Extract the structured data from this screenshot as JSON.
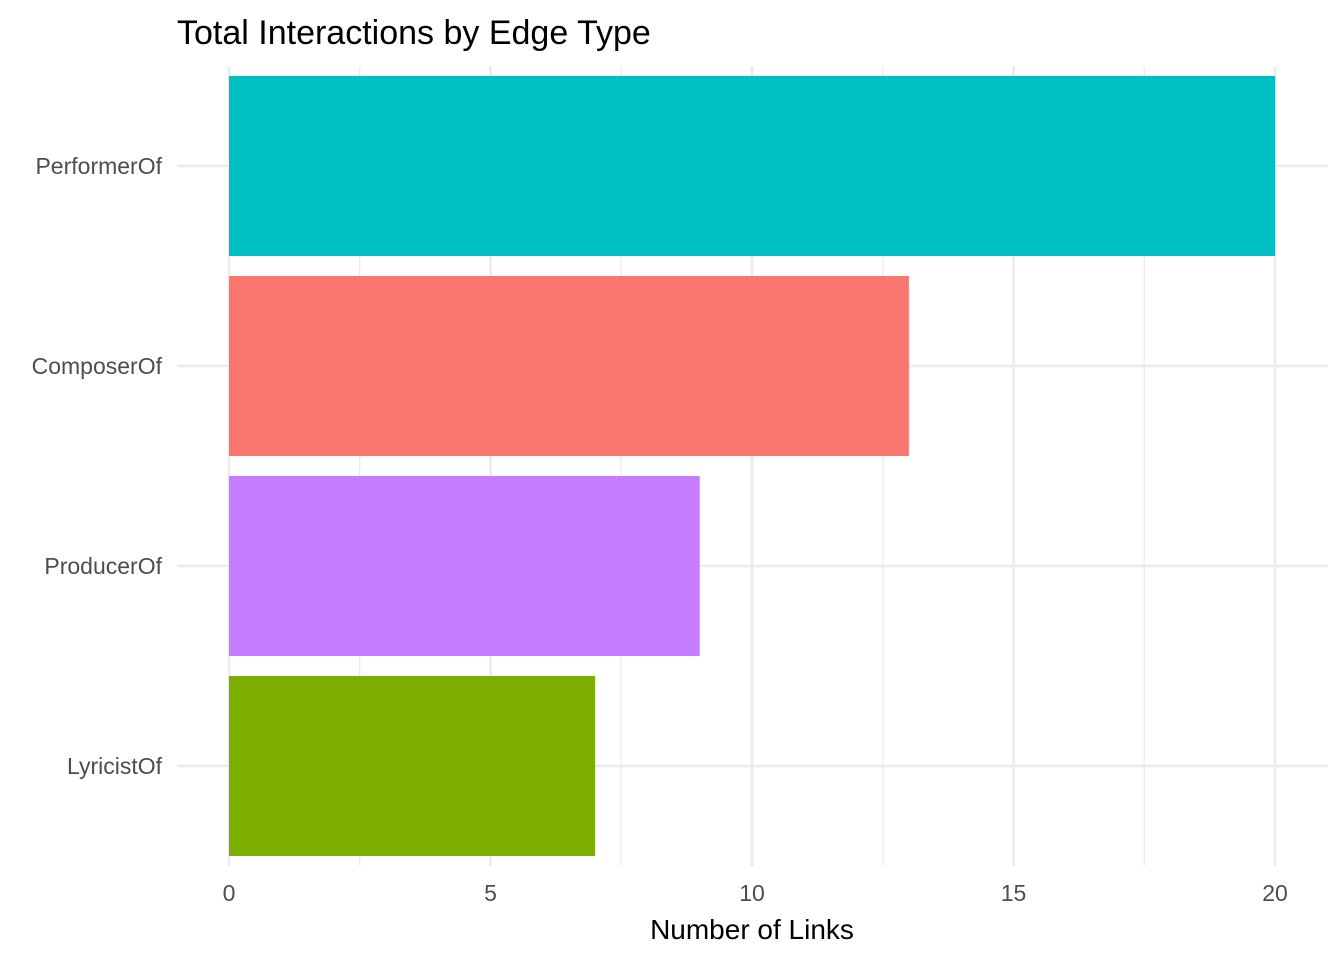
{
  "chart_data": {
    "type": "bar",
    "orientation": "horizontal",
    "title": "Total Interactions by Edge Type",
    "xlabel": "Number of Links",
    "ylabel": "",
    "categories": [
      "PerformerOf",
      "ComposerOf",
      "ProducerOf",
      "LyricistOf"
    ],
    "values": [
      20,
      13,
      9,
      7
    ],
    "colors": [
      "#00BFC4",
      "#F8766D",
      "#C77CFF",
      "#7CAE00"
    ],
    "xlim": [
      0,
      20
    ],
    "x_ticks": [
      0,
      5,
      10,
      15,
      20
    ],
    "x_tick_labels": [
      "0",
      "5",
      "10",
      "15",
      "20"
    ],
    "grid": true,
    "legend": "none"
  }
}
